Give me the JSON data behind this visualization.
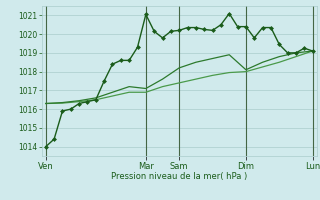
{
  "xlabel": "Pression niveau de la mer( hPa )",
  "bg_color": "#d0eaec",
  "grid_color": "#aacccc",
  "ylim": [
    1013.5,
    1021.5
  ],
  "yticks": [
    1014,
    1015,
    1016,
    1017,
    1018,
    1019,
    1020,
    1021
  ],
  "day_labels": [
    "Ven",
    "Mar",
    "Sam",
    "Dim",
    "Lun"
  ],
  "day_positions": [
    0,
    12,
    16,
    24,
    32
  ],
  "line_color_dark": "#1a5c1a",
  "line_color_mid": "#2d7a2d",
  "line_color_light": "#4a9a4a",
  "series1_x": [
    0,
    1,
    2,
    3,
    4,
    5,
    6,
    7,
    8,
    9,
    10,
    11,
    12,
    13,
    14,
    15,
    16,
    17,
    18,
    19,
    20,
    21,
    22,
    23,
    24,
    25,
    26,
    27,
    28,
    29,
    30,
    31,
    32
  ],
  "series1_y": [
    1014.0,
    1014.4,
    1015.9,
    1016.0,
    1016.3,
    1016.4,
    1016.5,
    1017.5,
    1018.4,
    1018.6,
    1018.6,
    1019.3,
    1021.05,
    1020.15,
    1019.8,
    1020.15,
    1020.2,
    1020.35,
    1020.35,
    1020.25,
    1020.2,
    1020.5,
    1021.1,
    1020.4,
    1020.4,
    1019.8,
    1020.35,
    1020.35,
    1019.45,
    1019.0,
    1019.0,
    1019.25,
    1019.1
  ],
  "series2_x": [
    0,
    2,
    4,
    6,
    8,
    10,
    12,
    14,
    16,
    18,
    20,
    22,
    24,
    26,
    28,
    30,
    32
  ],
  "series2_y": [
    1016.3,
    1016.35,
    1016.45,
    1016.6,
    1016.9,
    1017.2,
    1017.1,
    1017.6,
    1018.2,
    1018.5,
    1018.7,
    1018.9,
    1018.1,
    1018.5,
    1018.8,
    1019.0,
    1019.1
  ],
  "series3_x": [
    0,
    2,
    4,
    6,
    8,
    10,
    12,
    14,
    16,
    18,
    20,
    22,
    24,
    26,
    28,
    30,
    32
  ],
  "series3_y": [
    1016.3,
    1016.32,
    1016.4,
    1016.5,
    1016.7,
    1016.9,
    1016.9,
    1017.2,
    1017.4,
    1017.6,
    1017.8,
    1017.95,
    1018.0,
    1018.25,
    1018.5,
    1018.8,
    1019.1
  ],
  "vline_positions": [
    0,
    12,
    16,
    24,
    32
  ],
  "vline_color": "#446644",
  "text_color": "#1a5c1a",
  "marker_size": 2.5,
  "lw1": 1.0,
  "lw2": 0.9,
  "lw3": 0.9
}
